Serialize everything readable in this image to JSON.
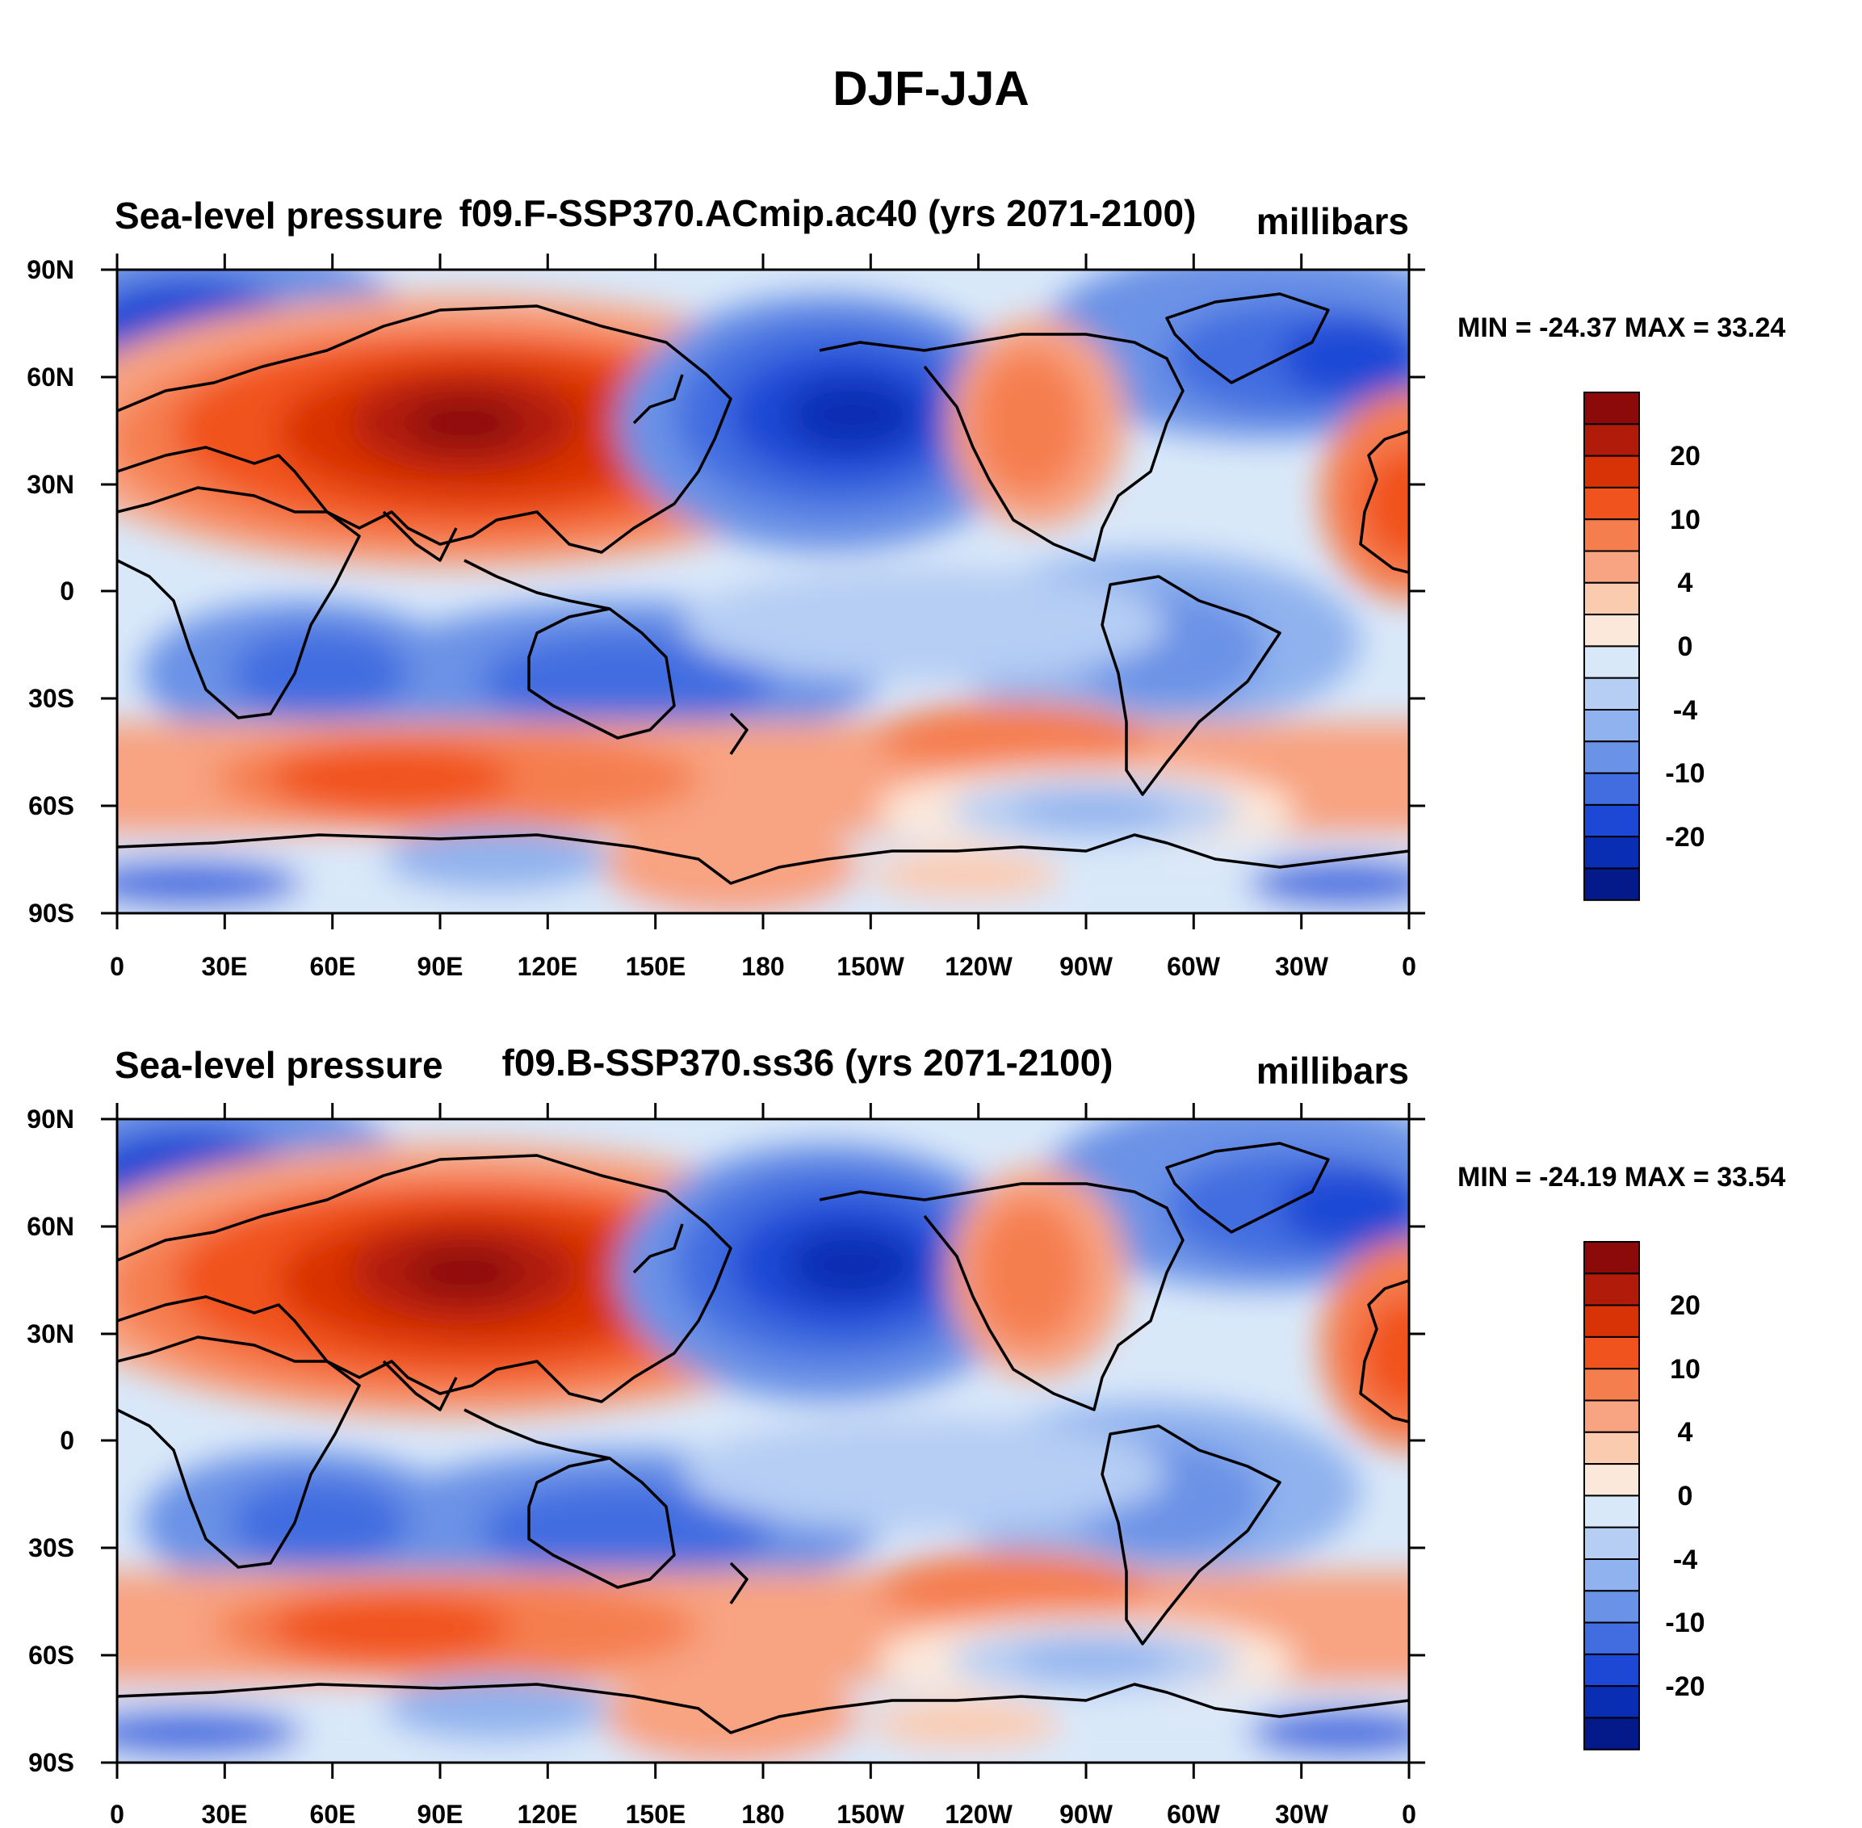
{
  "main_title": "DJF-JJA",
  "panels": [
    {
      "left_title": "Sea-level pressure",
      "center_title": "f09.F-SSP370.ACmip.ac40 (yrs 2071-2100)",
      "units": "millibars",
      "stats": "MIN = -24.37 MAX =  33.24"
    },
    {
      "left_title": "Sea-level pressure",
      "center_title": "f09.B-SSP370.ss36 (yrs 2071-2100)",
      "units": "millibars",
      "stats": "MIN = -24.19 MAX =  33.54"
    }
  ],
  "axes": {
    "lat_ticks": [
      "90N",
      "60N",
      "30N",
      "0",
      "30S",
      "60S",
      "90S"
    ],
    "lon_ticks": [
      "0",
      "30E",
      "60E",
      "90E",
      "120E",
      "150E",
      "180",
      "150W",
      "120W",
      "90W",
      "60W",
      "30W",
      "0"
    ]
  },
  "colorbar": {
    "colors": [
      "#8c0a0a",
      "#b11c0a",
      "#d83306",
      "#f1531f",
      "#f57e4f",
      "#f8a381",
      "#fbcbb0",
      "#fce8da",
      "#d9e8f9",
      "#b6cef4",
      "#90b2ee",
      "#6a92e6",
      "#426de0",
      "#1c48d5",
      "#0a2eb3",
      "#051a8a"
    ],
    "labels": [
      "20",
      "10",
      "4",
      "0",
      "-4",
      "-10",
      "-20"
    ]
  }
}
